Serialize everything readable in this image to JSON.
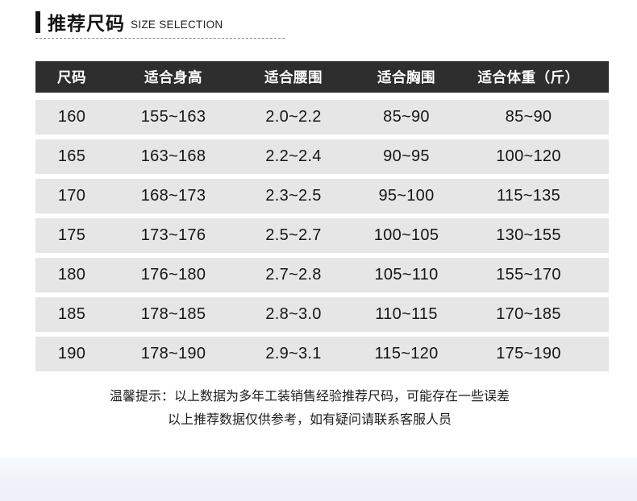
{
  "title": {
    "zh": "推荐尺码",
    "en": "SIZE SELECTION"
  },
  "chart_data": {
    "type": "table",
    "title": "推荐尺码 SIZE SELECTION",
    "columns": [
      "尺码",
      "适合身高",
      "适合腰围",
      "适合胸围",
      "适合体重（斤）"
    ],
    "rows": [
      [
        "160",
        "155~163",
        "2.0~2.2",
        "85~90",
        "85~90"
      ],
      [
        "165",
        "163~168",
        "2.2~2.4",
        "90~95",
        "100~120"
      ],
      [
        "170",
        "168~173",
        "2.3~2.5",
        "95~100",
        "115~135"
      ],
      [
        "175",
        "173~176",
        "2.5~2.7",
        "100~105",
        "130~155"
      ],
      [
        "180",
        "176~180",
        "2.7~2.8",
        "105~110",
        "155~170"
      ],
      [
        "185",
        "178~185",
        "2.8~3.0",
        "110~115",
        "170~185"
      ],
      [
        "190",
        "178~190",
        "2.9~3.1",
        "115~120",
        "175~190"
      ]
    ]
  },
  "notes": {
    "line1": "温馨提示：以上数据为多年工装销售经验推荐尺码，可能存在一些误差",
    "line2": "以上推荐数据仅供参考，如有疑问请联系客服人员"
  },
  "colors": {
    "header_bg": "#2e2e2e",
    "header_text": "#ffffff",
    "row_bg": "#e6e6e6",
    "accent_bar": "#141414",
    "bottom_band": "#eef2f8"
  }
}
